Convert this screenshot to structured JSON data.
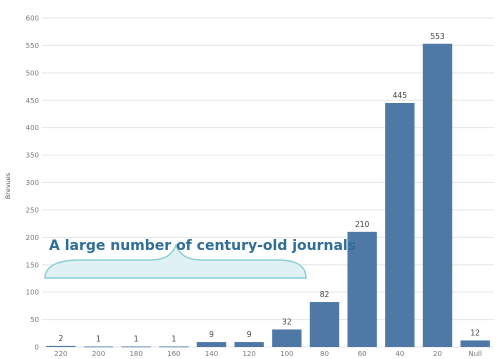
{
  "chart_data": {
    "type": "bar",
    "categories": [
      "220",
      "200",
      "180",
      "160",
      "140",
      "120",
      "100",
      "80",
      "60",
      "40",
      "20",
      "Null"
    ],
    "values": [
      2,
      1,
      1,
      1,
      9,
      9,
      32,
      82,
      210,
      445,
      553,
      12
    ],
    "ylabel": "Brevues",
    "ylim": [
      0,
      600
    ],
    "yticks": [
      0,
      50,
      100,
      150,
      200,
      250,
      300,
      350,
      400,
      450,
      500,
      550,
      600
    ],
    "grid": true,
    "bar_color": "#4e79a7",
    "annotation": {
      "text": "A large number of century-old journals",
      "color": "#2f6f97",
      "brace_color": "#8ecfd6",
      "brace_fill": "#dff1f3",
      "spans_categories": [
        "220",
        "100"
      ]
    }
  }
}
